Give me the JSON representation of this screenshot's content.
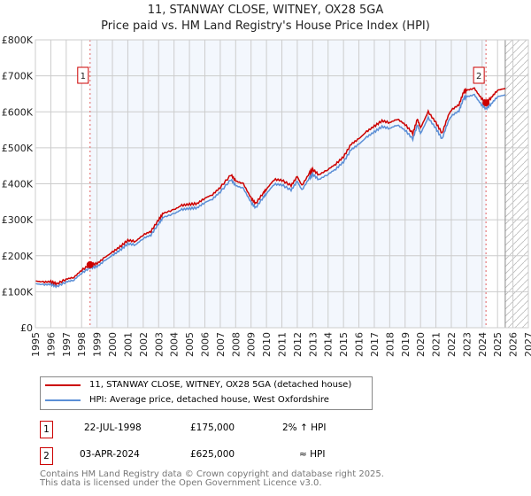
{
  "chart_data": {
    "type": "line",
    "title": "11, STANWAY CLOSE, WITNEY, OX28 5GA",
    "subtitle": "Price paid vs. HM Land Registry's House Price Index (HPI)",
    "xlim": [
      1995,
      2027
    ],
    "ylim": [
      0,
      800000
    ],
    "y_ticks": [
      "£0",
      "£100K",
      "£200K",
      "£300K",
      "£400K",
      "£500K",
      "£600K",
      "£700K",
      "£800K"
    ],
    "x_ticks": [
      "1995",
      "1996",
      "1997",
      "1998",
      "1999",
      "2000",
      "2001",
      "2002",
      "2003",
      "2004",
      "2005",
      "2006",
      "2007",
      "2008",
      "2009",
      "2010",
      "2011",
      "2012",
      "2013",
      "2014",
      "2015",
      "2016",
      "2017",
      "2018",
      "2019",
      "2020",
      "2021",
      "2022",
      "2023",
      "2024",
      "2025",
      "2026",
      "2027"
    ],
    "grid": true,
    "forecast_hatch_start": 2025.5,
    "series": [
      {
        "name": "11, STANWAY CLOSE, WITNEY, OX28 5GA (detached house)",
        "color": "#cc0000",
        "x": [
          1995,
          1995.5,
          1996,
          1996.4,
          1997,
          1997.5,
          1998,
          1998.55,
          1999,
          1999.5,
          2000,
          2000.5,
          2001,
          2001.5,
          2002,
          2002.5,
          2003,
          2003.3,
          2004,
          2004.5,
          2005,
          2005.5,
          2006,
          2006.5,
          2007,
          2007.7,
          2008,
          2008.5,
          2009,
          2009.3,
          2009.8,
          2010,
          2010.5,
          2011,
          2011.6,
          2012,
          2012.3,
          2012.8,
          2013,
          2013.4,
          2014,
          2014.5,
          2015,
          2015.5,
          2016,
          2016.5,
          2017,
          2017.5,
          2018,
          2018.5,
          2019,
          2019.5,
          2019.8,
          2020,
          2020.5,
          2021,
          2021.4,
          2021.8,
          2022,
          2022.5,
          2022.8,
          2023,
          2023.5,
          2023.9,
          2024.25,
          2024.6,
          2025,
          2025.5
        ],
        "y": [
          130,
          127,
          128,
          122,
          135,
          140,
          160,
          175,
          178,
          195,
          210,
          225,
          243,
          240,
          258,
          268,
          300,
          318,
          328,
          340,
          343,
          345,
          360,
          370,
          390,
          425,
          408,
          400,
          360,
          345,
          375,
          385,
          412,
          410,
          395,
          420,
          395,
          430,
          440,
          425,
          440,
          455,
          475,
          510,
          525,
          545,
          560,
          575,
          570,
          580,
          565,
          540,
          580,
          555,
          600,
          570,
          540,
          590,
          605,
          620,
          655,
          660,
          665,
          640,
          625,
          640,
          660,
          665
        ]
      },
      {
        "name": "HPI: Average price, detached house, West Oxfordshire",
        "color": "#5b8fd6"
      }
    ],
    "sales": [
      {
        "id": "1",
        "x": 1998.55,
        "y": 175000,
        "date": "22-JUL-1998",
        "price": "£175,000",
        "delta": "2% ↑ HPI"
      },
      {
        "id": "2",
        "x": 2024.25,
        "y": 625000,
        "date": "03-APR-2024",
        "price": "£625,000",
        "delta": "≈ HPI"
      }
    ]
  },
  "footer": {
    "line1": "Contains HM Land Registry data © Crown copyright and database right 2025.",
    "line2": "This data is licensed under the Open Government Licence v3.0."
  }
}
